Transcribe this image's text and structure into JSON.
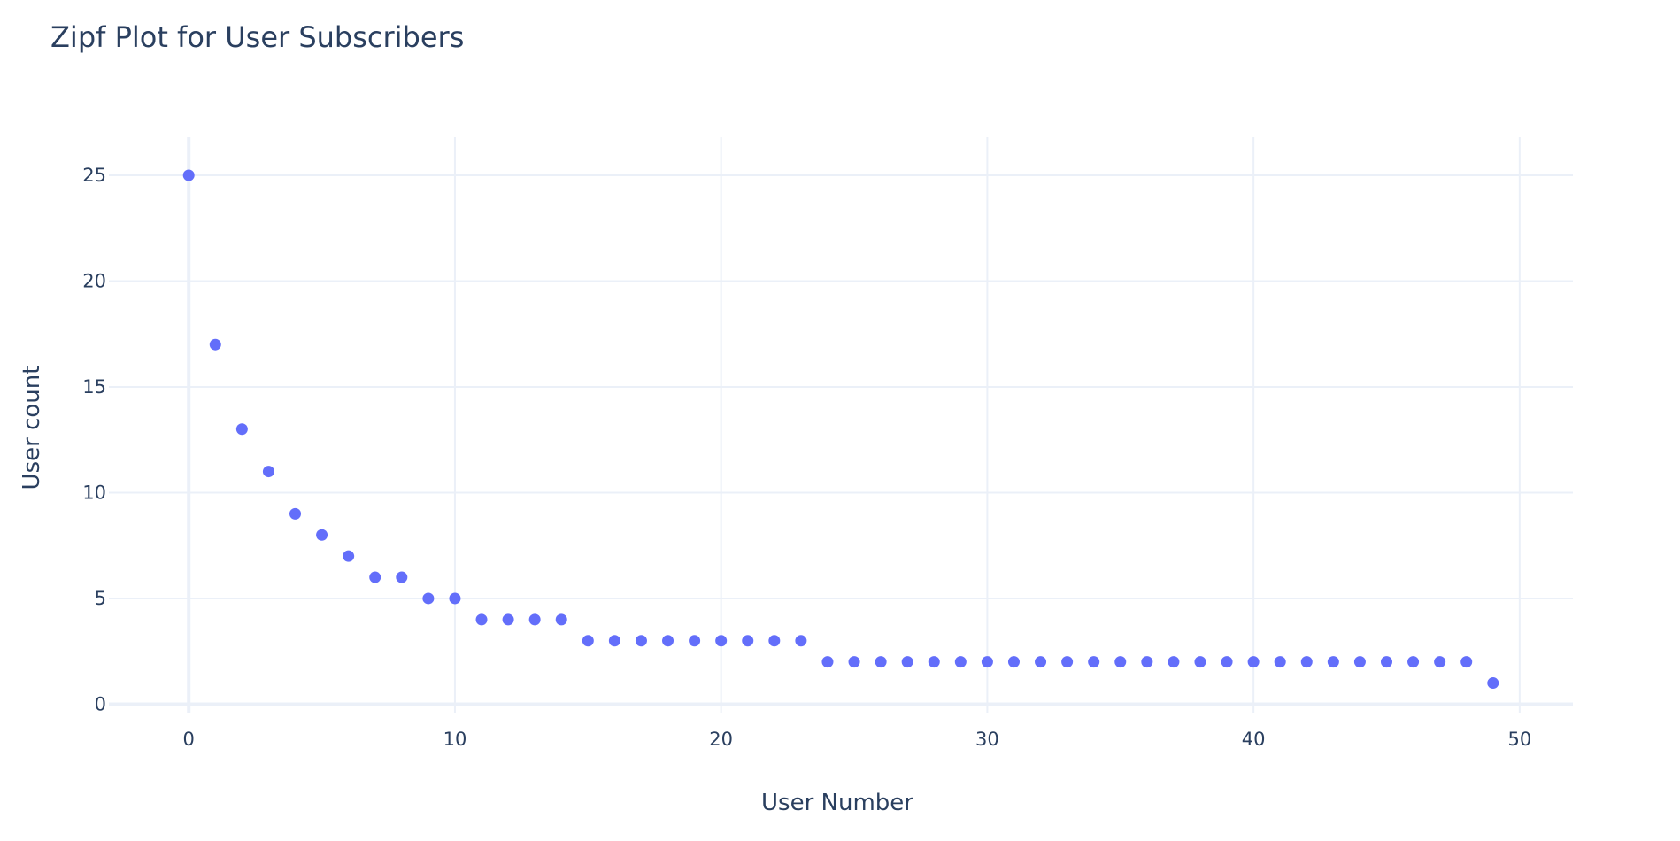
{
  "chart_data": {
    "type": "scatter",
    "title": "Zipf Plot for User Subscribers",
    "xlabel": "User Number",
    "ylabel": "User count",
    "xlim": [
      -3,
      52
    ],
    "ylim": [
      -0.4,
      26.8
    ],
    "xticks": [
      0,
      10,
      20,
      30,
      40,
      50
    ],
    "yticks": [
      0,
      5,
      10,
      15,
      20,
      25
    ],
    "grid": true,
    "marker_color": "#636efa",
    "series": [
      {
        "x": [
          0,
          1,
          2,
          3,
          4,
          5,
          6,
          7,
          8,
          9,
          10,
          11,
          12,
          13,
          14,
          15,
          16,
          17,
          18,
          19,
          20,
          21,
          22,
          23,
          24,
          25,
          26,
          27,
          28,
          29,
          30,
          31,
          32,
          33,
          34,
          35,
          36,
          37,
          38,
          39,
          40,
          41,
          42,
          43,
          44,
          45,
          46,
          47,
          48,
          49
        ],
        "y": [
          25,
          17,
          13,
          11,
          9,
          8,
          7,
          6,
          6,
          5,
          5,
          4,
          4,
          4,
          4,
          3,
          3,
          3,
          3,
          3,
          3,
          3,
          3,
          3,
          2,
          2,
          2,
          2,
          2,
          2,
          2,
          2,
          2,
          2,
          2,
          2,
          2,
          2,
          2,
          2,
          2,
          2,
          2,
          2,
          2,
          2,
          2,
          2,
          2,
          1
        ]
      }
    ]
  }
}
